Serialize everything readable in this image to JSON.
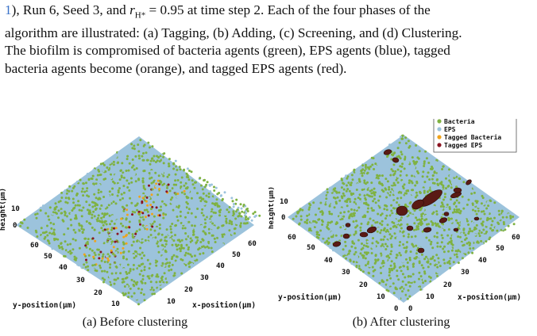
{
  "paragraph": {
    "line1_ref": "1",
    "line1_rest_a": "), Run 6, Seed 3, and ",
    "line1_sym": "r",
    "line1_sub": "H*",
    "line1_rest_b": " = 0.95 at time step 2. Each of the four phases of the",
    "line2": "algorithm are illustrated: (a) Tagging, (b) Adding, (c) Screening, and (d) Clustering.",
    "line3": "The biofilm is compromised of bacteria agents (green), EPS agents (blue), tagged",
    "line4": "bacteria agents become (orange), and tagged EPS agents (red)."
  },
  "colors": {
    "bacteria": "#7fb241",
    "eps": "#9cc3dc",
    "tagged_bacteria": "#f0a31b",
    "tagged_eps": "#8b1421"
  },
  "figure_a": {
    "caption": "(a) Before clustering",
    "zlabel": "height(μm)",
    "ylabel": "y-position(μm)",
    "xlabel": "x-position(μm)",
    "z_ticks": [
      "10",
      "0"
    ],
    "y_ticks": [
      "60",
      "50",
      "40",
      "30",
      "20",
      "10"
    ],
    "x_ticks": [
      "10",
      "20",
      "30",
      "40",
      "50",
      "60"
    ]
  },
  "figure_b": {
    "caption": "(b) After clustering",
    "zlabel": "height(μm)",
    "ylabel": "y-position(μm)",
    "xlabel": "x-position(μm)",
    "z_ticks": [
      "10",
      "0"
    ],
    "y_ticks": [
      "60",
      "50",
      "40",
      "30",
      "20",
      "10",
      "0"
    ],
    "x_ticks": [
      "0",
      "10",
      "20",
      "30",
      "40",
      "50",
      "60"
    ],
    "legend": [
      "Bacteria",
      "EPS",
      "Tagged Bacteria",
      "Tagged EPS"
    ]
  }
}
